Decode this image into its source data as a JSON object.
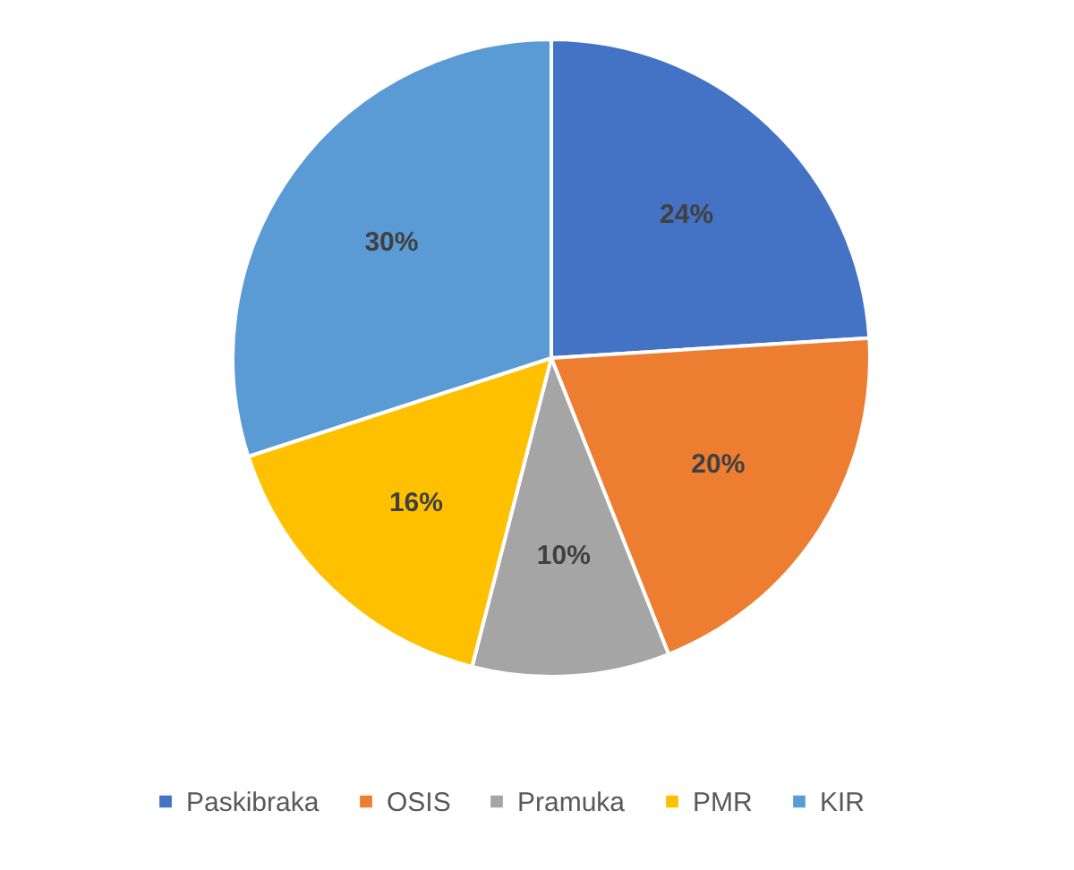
{
  "chart_data": {
    "type": "pie",
    "categories": [
      "Paskibraka",
      "OSIS",
      "Pramuka",
      "PMR",
      "KIR"
    ],
    "values": [
      24,
      20,
      10,
      16,
      30
    ],
    "value_labels": [
      "24%",
      "20%",
      "10%",
      "16%",
      "30%"
    ],
    "colors": [
      "#4472c4",
      "#ed7d31",
      "#a5a5a5",
      "#ffc000",
      "#5b9bd5"
    ],
    "legend": "bottom"
  }
}
